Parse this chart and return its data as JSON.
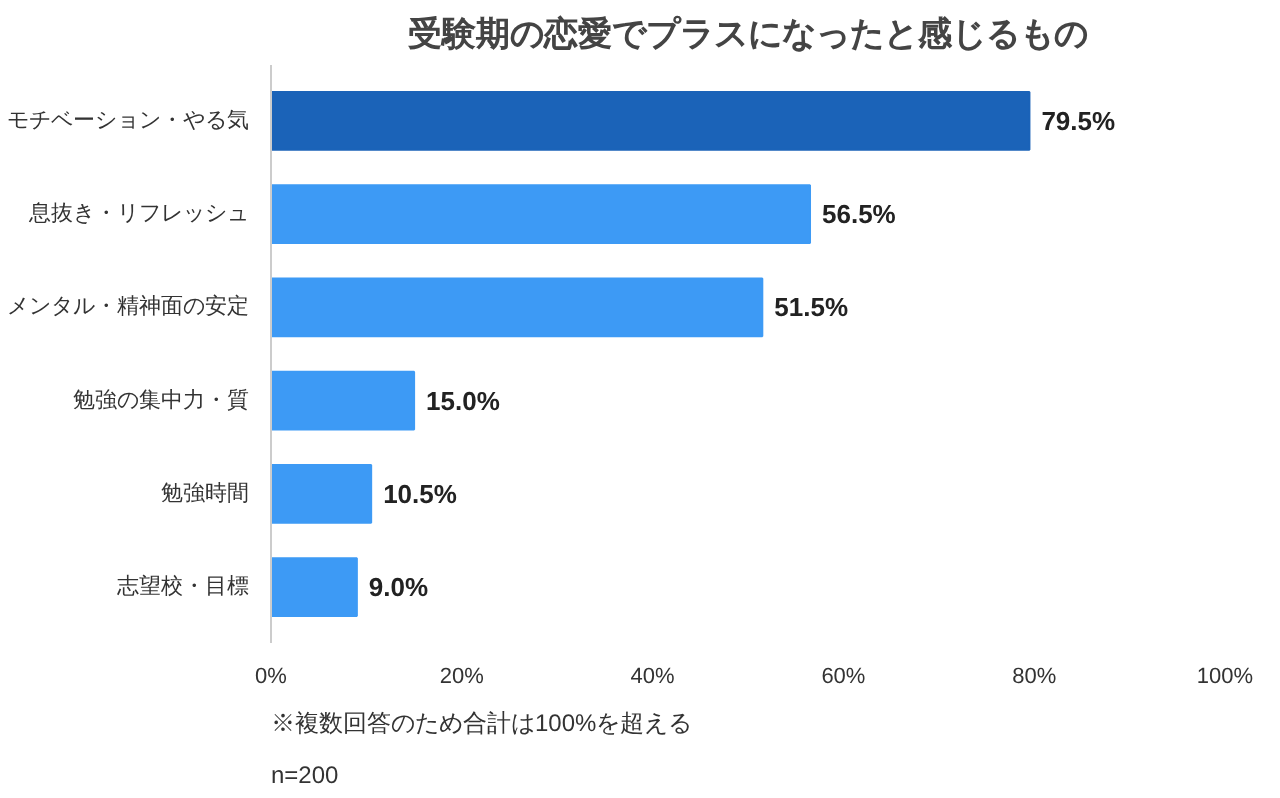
{
  "chart_data": {
    "type": "bar",
    "orientation": "horizontal",
    "title": "受験期の恋愛でプラスになったと感じるもの",
    "categories": [
      "モチベーション・やる気",
      "息抜き・リフレッシュ",
      "メンタル・精神面の安定",
      "勉強の集中力・質",
      "勉強時間",
      "志望校・目標"
    ],
    "values": [
      79.5,
      56.5,
      51.5,
      15.0,
      10.5,
      9.0
    ],
    "colors": [
      "#1b63b8",
      "#3d9af5",
      "#3d9af5",
      "#3d9af5",
      "#3d9af5",
      "#3d9af5"
    ],
    "value_labels": [
      "79.5%",
      "56.5%",
      "51.5%",
      "15.0%",
      "10.5%",
      "9.0%"
    ],
    "xlim": [
      0,
      100
    ],
    "xticks": [
      {
        "value": 0,
        "label": "0%"
      },
      {
        "value": 20,
        "label": "20%"
      },
      {
        "value": 40,
        "label": "40%"
      },
      {
        "value": 60,
        "label": "60%"
      },
      {
        "value": 80,
        "label": "80%"
      },
      {
        "value": 100,
        "label": "100%"
      }
    ],
    "annotations": [
      "※複数回答のため合計は100%を超える",
      "n=200"
    ]
  }
}
